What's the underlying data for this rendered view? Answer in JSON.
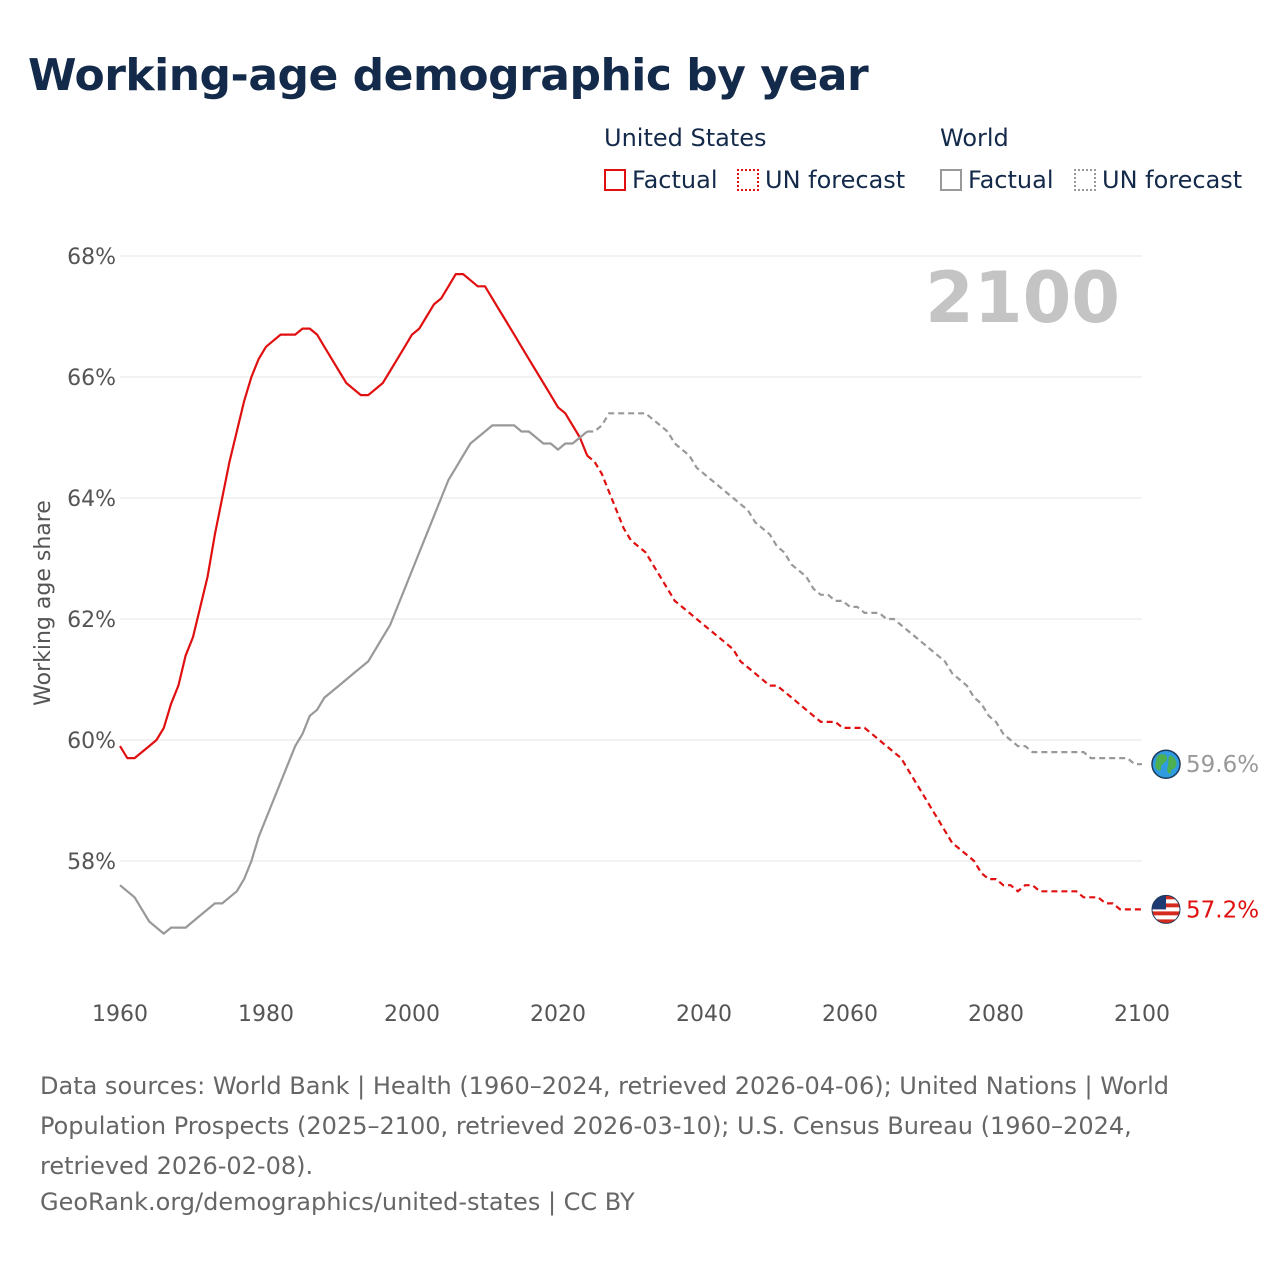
{
  "page": {
    "title": "Working-age demographic by year",
    "source_note": "Data sources: World Bank | Health (1960–2024, retrieved 2026-04-06); United Nations | World Population Prospects (2025–2100, retrieved 2026-03-10); U.S. Census Bureau (1960–2024, retrieved 2026-02-08).",
    "attribution": "GeoRank.org/demographics/united-states | CC BY"
  },
  "legend": {
    "us_heading": "United States",
    "world_heading": "World",
    "factual_label": "Factual",
    "forecast_label": "UN forecast"
  },
  "colors": {
    "us": "#e01010",
    "world": "#999999",
    "title": "#142a4a",
    "grid": "#e6e6e6",
    "year_watermark": "#c4c4c4"
  },
  "chart_data": {
    "type": "line",
    "title": "Working-age demographic by year",
    "ylabel": "Working age share",
    "xlabel": "",
    "xlim": [
      1960,
      2100
    ],
    "ylim": [
      56.5,
      68.5
    ],
    "xticks": [
      1960,
      1980,
      2000,
      2020,
      2040,
      2060,
      2080,
      2100
    ],
    "xtick_labels": [
      "1960",
      "1980",
      "2000",
      "2020",
      "2040",
      "2060",
      "2080",
      "2100"
    ],
    "yticks": [
      58,
      60,
      62,
      64,
      66,
      68
    ],
    "ytick_labels": [
      "58%",
      "60%",
      "62%",
      "64%",
      "66%",
      "68%"
    ],
    "grid": true,
    "current_year": "2100",
    "forecast_start": 2024,
    "series": [
      {
        "name": "United States",
        "key": "us",
        "end_label": "57.2%",
        "end_icon": "us-flag-icon",
        "points": [
          [
            1960,
            59.9
          ],
          [
            1961,
            59.7
          ],
          [
            1962,
            59.7
          ],
          [
            1963,
            59.8
          ],
          [
            1964,
            59.9
          ],
          [
            1965,
            60.0
          ],
          [
            1966,
            60.2
          ],
          [
            1967,
            60.6
          ],
          [
            1968,
            60.9
          ],
          [
            1969,
            61.4
          ],
          [
            1970,
            61.7
          ],
          [
            1971,
            62.2
          ],
          [
            1972,
            62.7
          ],
          [
            1973,
            63.4
          ],
          [
            1974,
            64.0
          ],
          [
            1975,
            64.6
          ],
          [
            1976,
            65.1
          ],
          [
            1977,
            65.6
          ],
          [
            1978,
            66.0
          ],
          [
            1979,
            66.3
          ],
          [
            1980,
            66.5
          ],
          [
            1981,
            66.6
          ],
          [
            1982,
            66.7
          ],
          [
            1983,
            66.7
          ],
          [
            1984,
            66.7
          ],
          [
            1985,
            66.8
          ],
          [
            1986,
            66.8
          ],
          [
            1987,
            66.7
          ],
          [
            1988,
            66.5
          ],
          [
            1989,
            66.3
          ],
          [
            1990,
            66.1
          ],
          [
            1991,
            65.9
          ],
          [
            1992,
            65.8
          ],
          [
            1993,
            65.7
          ],
          [
            1994,
            65.7
          ],
          [
            1995,
            65.8
          ],
          [
            1996,
            65.9
          ],
          [
            1997,
            66.1
          ],
          [
            1998,
            66.3
          ],
          [
            1999,
            66.5
          ],
          [
            2000,
            66.7
          ],
          [
            2001,
            66.8
          ],
          [
            2002,
            67.0
          ],
          [
            2003,
            67.2
          ],
          [
            2004,
            67.3
          ],
          [
            2005,
            67.5
          ],
          [
            2006,
            67.7
          ],
          [
            2007,
            67.7
          ],
          [
            2008,
            67.6
          ],
          [
            2009,
            67.5
          ],
          [
            2010,
            67.5
          ],
          [
            2011,
            67.3
          ],
          [
            2012,
            67.1
          ],
          [
            2013,
            66.9
          ],
          [
            2014,
            66.7
          ],
          [
            2015,
            66.5
          ],
          [
            2016,
            66.3
          ],
          [
            2017,
            66.1
          ],
          [
            2018,
            65.9
          ],
          [
            2019,
            65.7
          ],
          [
            2020,
            65.5
          ],
          [
            2021,
            65.4
          ],
          [
            2022,
            65.2
          ],
          [
            2023,
            65.0
          ],
          [
            2024,
            64.7
          ],
          [
            2025,
            64.6
          ],
          [
            2026,
            64.4
          ],
          [
            2027,
            64.1
          ],
          [
            2028,
            63.8
          ],
          [
            2029,
            63.5
          ],
          [
            2030,
            63.3
          ],
          [
            2031,
            63.2
          ],
          [
            2032,
            63.1
          ],
          [
            2033,
            62.9
          ],
          [
            2034,
            62.7
          ],
          [
            2035,
            62.5
          ],
          [
            2036,
            62.3
          ],
          [
            2037,
            62.2
          ],
          [
            2038,
            62.1
          ],
          [
            2039,
            62.0
          ],
          [
            2040,
            61.9
          ],
          [
            2041,
            61.8
          ],
          [
            2042,
            61.7
          ],
          [
            2043,
            61.6
          ],
          [
            2044,
            61.5
          ],
          [
            2045,
            61.3
          ],
          [
            2046,
            61.2
          ],
          [
            2047,
            61.1
          ],
          [
            2048,
            61.0
          ],
          [
            2049,
            60.9
          ],
          [
            2050,
            60.9
          ],
          [
            2051,
            60.8
          ],
          [
            2052,
            60.7
          ],
          [
            2053,
            60.6
          ],
          [
            2054,
            60.5
          ],
          [
            2055,
            60.4
          ],
          [
            2056,
            60.3
          ],
          [
            2057,
            60.3
          ],
          [
            2058,
            60.3
          ],
          [
            2059,
            60.2
          ],
          [
            2060,
            60.2
          ],
          [
            2061,
            60.2
          ],
          [
            2062,
            60.2
          ],
          [
            2063,
            60.1
          ],
          [
            2064,
            60.0
          ],
          [
            2065,
            59.9
          ],
          [
            2066,
            59.8
          ],
          [
            2067,
            59.7
          ],
          [
            2068,
            59.5
          ],
          [
            2069,
            59.3
          ],
          [
            2070,
            59.1
          ],
          [
            2071,
            58.9
          ],
          [
            2072,
            58.7
          ],
          [
            2073,
            58.5
          ],
          [
            2074,
            58.3
          ],
          [
            2075,
            58.2
          ],
          [
            2076,
            58.1
          ],
          [
            2077,
            58.0
          ],
          [
            2078,
            57.8
          ],
          [
            2079,
            57.7
          ],
          [
            2080,
            57.7
          ],
          [
            2081,
            57.6
          ],
          [
            2082,
            57.6
          ],
          [
            2083,
            57.5
          ],
          [
            2084,
            57.6
          ],
          [
            2085,
            57.6
          ],
          [
            2086,
            57.5
          ],
          [
            2087,
            57.5
          ],
          [
            2088,
            57.5
          ],
          [
            2089,
            57.5
          ],
          [
            2090,
            57.5
          ],
          [
            2091,
            57.5
          ],
          [
            2092,
            57.4
          ],
          [
            2093,
            57.4
          ],
          [
            2094,
            57.4
          ],
          [
            2095,
            57.3
          ],
          [
            2096,
            57.3
          ],
          [
            2097,
            57.2
          ],
          [
            2098,
            57.2
          ],
          [
            2099,
            57.2
          ],
          [
            2100,
            57.2
          ]
        ]
      },
      {
        "name": "World",
        "key": "world",
        "end_label": "59.6%",
        "end_icon": "globe-icon",
        "points": [
          [
            1960,
            57.6
          ],
          [
            1961,
            57.5
          ],
          [
            1962,
            57.4
          ],
          [
            1963,
            57.2
          ],
          [
            1964,
            57.0
          ],
          [
            1965,
            56.9
          ],
          [
            1966,
            56.8
          ],
          [
            1967,
            56.9
          ],
          [
            1968,
            56.9
          ],
          [
            1969,
            56.9
          ],
          [
            1970,
            57.0
          ],
          [
            1971,
            57.1
          ],
          [
            1972,
            57.2
          ],
          [
            1973,
            57.3
          ],
          [
            1974,
            57.3
          ],
          [
            1975,
            57.4
          ],
          [
            1976,
            57.5
          ],
          [
            1977,
            57.7
          ],
          [
            1978,
            58.0
          ],
          [
            1979,
            58.4
          ],
          [
            1980,
            58.7
          ],
          [
            1981,
            59.0
          ],
          [
            1982,
            59.3
          ],
          [
            1983,
            59.6
          ],
          [
            1984,
            59.9
          ],
          [
            1985,
            60.1
          ],
          [
            1986,
            60.4
          ],
          [
            1987,
            60.5
          ],
          [
            1988,
            60.7
          ],
          [
            1989,
            60.8
          ],
          [
            1990,
            60.9
          ],
          [
            1991,
            61.0
          ],
          [
            1992,
            61.1
          ],
          [
            1993,
            61.2
          ],
          [
            1994,
            61.3
          ],
          [
            1995,
            61.5
          ],
          [
            1996,
            61.7
          ],
          [
            1997,
            61.9
          ],
          [
            1998,
            62.2
          ],
          [
            1999,
            62.5
          ],
          [
            2000,
            62.8
          ],
          [
            2001,
            63.1
          ],
          [
            2002,
            63.4
          ],
          [
            2003,
            63.7
          ],
          [
            2004,
            64.0
          ],
          [
            2005,
            64.3
          ],
          [
            2006,
            64.5
          ],
          [
            2007,
            64.7
          ],
          [
            2008,
            64.9
          ],
          [
            2009,
            65.0
          ],
          [
            2010,
            65.1
          ],
          [
            2011,
            65.2
          ],
          [
            2012,
            65.2
          ],
          [
            2013,
            65.2
          ],
          [
            2014,
            65.2
          ],
          [
            2015,
            65.1
          ],
          [
            2016,
            65.1
          ],
          [
            2017,
            65.0
          ],
          [
            2018,
            64.9
          ],
          [
            2019,
            64.9
          ],
          [
            2020,
            64.8
          ],
          [
            2021,
            64.9
          ],
          [
            2022,
            64.9
          ],
          [
            2023,
            65.0
          ],
          [
            2024,
            65.1
          ],
          [
            2025,
            65.1
          ],
          [
            2026,
            65.2
          ],
          [
            2027,
            65.4
          ],
          [
            2028,
            65.4
          ],
          [
            2029,
            65.4
          ],
          [
            2030,
            65.4
          ],
          [
            2031,
            65.4
          ],
          [
            2032,
            65.4
          ],
          [
            2033,
            65.3
          ],
          [
            2034,
            65.2
          ],
          [
            2035,
            65.1
          ],
          [
            2036,
            64.9
          ],
          [
            2037,
            64.8
          ],
          [
            2038,
            64.7
          ],
          [
            2039,
            64.5
          ],
          [
            2040,
            64.4
          ],
          [
            2041,
            64.3
          ],
          [
            2042,
            64.2
          ],
          [
            2043,
            64.1
          ],
          [
            2044,
            64.0
          ],
          [
            2045,
            63.9
          ],
          [
            2046,
            63.8
          ],
          [
            2047,
            63.6
          ],
          [
            2048,
            63.5
          ],
          [
            2049,
            63.4
          ],
          [
            2050,
            63.2
          ],
          [
            2051,
            63.1
          ],
          [
            2052,
            62.9
          ],
          [
            2053,
            62.8
          ],
          [
            2054,
            62.7
          ],
          [
            2055,
            62.5
          ],
          [
            2056,
            62.4
          ],
          [
            2057,
            62.4
          ],
          [
            2058,
            62.3
          ],
          [
            2059,
            62.3
          ],
          [
            2060,
            62.2
          ],
          [
            2061,
            62.2
          ],
          [
            2062,
            62.1
          ],
          [
            2063,
            62.1
          ],
          [
            2064,
            62.1
          ],
          [
            2065,
            62.0
          ],
          [
            2066,
            62.0
          ],
          [
            2067,
            61.9
          ],
          [
            2068,
            61.8
          ],
          [
            2069,
            61.7
          ],
          [
            2070,
            61.6
          ],
          [
            2071,
            61.5
          ],
          [
            2072,
            61.4
          ],
          [
            2073,
            61.3
          ],
          [
            2074,
            61.1
          ],
          [
            2075,
            61.0
          ],
          [
            2076,
            60.9
          ],
          [
            2077,
            60.7
          ],
          [
            2078,
            60.6
          ],
          [
            2079,
            60.4
          ],
          [
            2080,
            60.3
          ],
          [
            2081,
            60.1
          ],
          [
            2082,
            60.0
          ],
          [
            2083,
            59.9
          ],
          [
            2084,
            59.9
          ],
          [
            2085,
            59.8
          ],
          [
            2086,
            59.8
          ],
          [
            2087,
            59.8
          ],
          [
            2088,
            59.8
          ],
          [
            2089,
            59.8
          ],
          [
            2090,
            59.8
          ],
          [
            2091,
            59.8
          ],
          [
            2092,
            59.8
          ],
          [
            2093,
            59.7
          ],
          [
            2094,
            59.7
          ],
          [
            2095,
            59.7
          ],
          [
            2096,
            59.7
          ],
          [
            2097,
            59.7
          ],
          [
            2098,
            59.7
          ],
          [
            2099,
            59.6
          ],
          [
            2100,
            59.6
          ]
        ]
      }
    ]
  }
}
